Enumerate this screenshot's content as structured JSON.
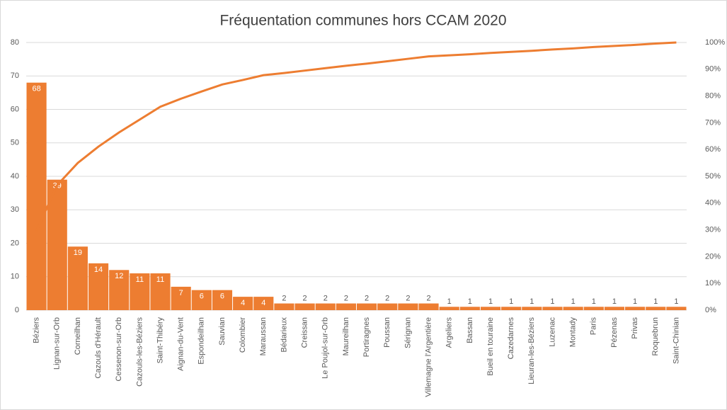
{
  "chart_data": {
    "type": "pareto",
    "title": "Fréquentation communes hors CCAM 2020",
    "categories": [
      "Béziers",
      "Lignan-sur-Orb",
      "Corneilhan",
      "Cazouls d'Hérault",
      "Cessenon-sur-Orb",
      "Cazouls-les-Béziers",
      "Saint-Thibéry",
      "Aignan-du-Vent",
      "Espondeilhan",
      "Sauvian",
      "Colombier",
      "Maraussan",
      "Bédarieux",
      "Creissan",
      "Le Poujol-sur-Orb",
      "Maureilhan",
      "Portiragnes",
      "Poussan",
      "Sérignan",
      "Villemagne l'Argentière",
      "Argeliers",
      "Bassan",
      "Bueil en touraine",
      "Cazedarnes",
      "Lieuran-les-Béziers",
      "Luzenac",
      "Montady",
      "Paris",
      "Pézenas",
      "Privas",
      "Roquebrun",
      "Saint-Chinian"
    ],
    "series": [
      {
        "color": "#ed7d31",
        "values": [
          68,
          39,
          19,
          14,
          12,
          11,
          11,
          7,
          6,
          6,
          4,
          4,
          2,
          2,
          2,
          2,
          2,
          2,
          2,
          2,
          1,
          1,
          1,
          1,
          1,
          1,
          1,
          1,
          1,
          1,
          1,
          1
        ]
      },
      {
        "color": "#ed7d31",
        "axis": "y2",
        "values": [
          29.7,
          46.7,
          55.0,
          61.1,
          66.4,
          71.2,
          76.0,
          79.0,
          81.7,
          84.3,
          86.0,
          87.8,
          88.6,
          89.5,
          90.4,
          91.3,
          92.1,
          93.0,
          93.9,
          94.8,
          95.2,
          95.6,
          96.1,
          96.5,
          96.9,
          97.4,
          97.8,
          98.3,
          98.7,
          99.1,
          99.6,
          100
        ]
      }
    ],
    "ylim": [
      0,
      80
    ],
    "yticks": [
      0,
      10,
      20,
      30,
      40,
      50,
      60,
      70,
      80
    ],
    "y2lim": [
      0,
      100
    ],
    "y2ticks": [
      {
        "value": 0,
        "label": "0%"
      },
      {
        "value": 10,
        "label": "10%"
      },
      {
        "value": 20,
        "label": "20%"
      },
      {
        "value": 30,
        "label": "30%"
      },
      {
        "value": 40,
        "label": "40%"
      },
      {
        "value": 50,
        "label": "50%"
      },
      {
        "value": 60,
        "label": "60%"
      },
      {
        "value": 70,
        "label": "70%"
      },
      {
        "value": 80,
        "label": "80%"
      },
      {
        "value": 90,
        "label": "90%"
      },
      {
        "value": 100,
        "label": "100%"
      }
    ],
    "grid": true
  }
}
